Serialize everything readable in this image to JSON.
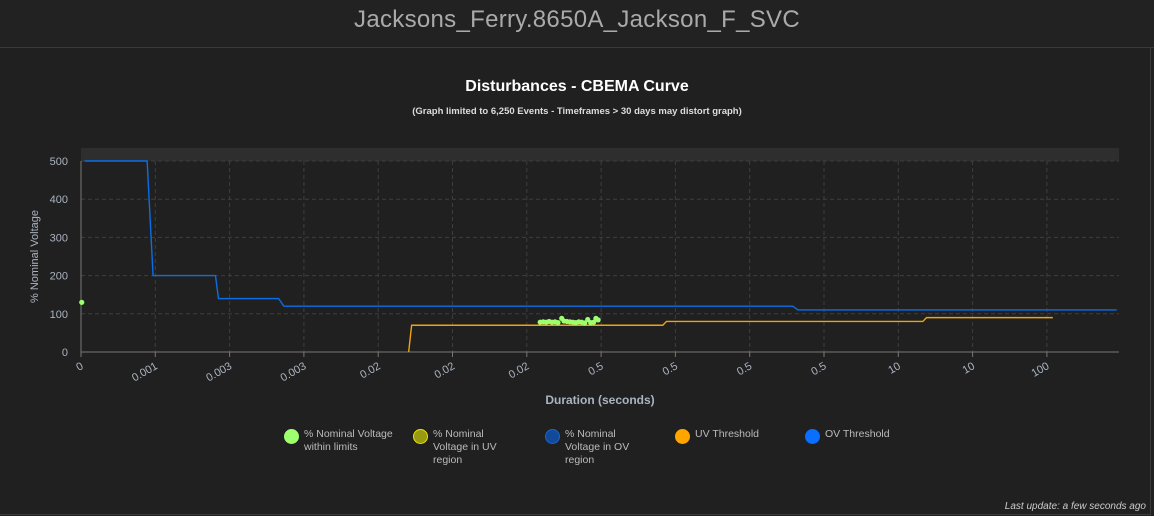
{
  "header": {
    "title": "Jacksons_Ferry.8650A_Jackson_F_SVC"
  },
  "footer": {
    "last_update": "Last update: a few seconds ago"
  },
  "chart_data": {
    "type": "line",
    "title": "Disturbances - CBEMA Curve",
    "subtitle": "(Graph limited to 6,250 Events - Timeframes > 30 days may distort graph)",
    "xlabel": "Duration (seconds)",
    "ylabel": "% Nominal Voltage",
    "x_tick_labels": [
      "0",
      "0.001",
      "0.003",
      "0.003",
      "0.02",
      "0.02",
      "0.02",
      "0.5",
      "0.5",
      "0.5",
      "0.5",
      "10",
      "10",
      "100"
    ],
    "x_axis_note": "x values given as tick-position index along the axis",
    "xlim": [
      0,
      14
    ],
    "ylim": [
      0,
      500
    ],
    "y_ticks": [
      0,
      100,
      200,
      300,
      400,
      500
    ],
    "grid": true,
    "legend_placement": "bottom",
    "series": [
      {
        "name": "OV Threshold",
        "kind": "line",
        "color": "#0a6ee6",
        "points": [
          [
            0.05,
            500
          ],
          [
            0.89,
            500
          ],
          [
            0.97,
            200
          ],
          [
            1.81,
            200
          ],
          [
            1.85,
            140
          ],
          [
            2.66,
            140
          ],
          [
            2.73,
            120
          ],
          [
            9.58,
            120
          ],
          [
            9.65,
            110
          ],
          [
            13.94,
            110
          ]
        ]
      },
      {
        "name": "UV Threshold",
        "kind": "line",
        "color": "#f0a30a",
        "points": [
          [
            4.41,
            0
          ],
          [
            4.45,
            70
          ],
          [
            7.83,
            70
          ],
          [
            7.88,
            80
          ],
          [
            11.33,
            80
          ],
          [
            11.38,
            90
          ],
          [
            13.08,
            90
          ]
        ]
      },
      {
        "name": "% Nominal Voltage within limits",
        "kind": "scatter",
        "color": "#9dff6e",
        "points": [
          [
            0.01,
            130
          ],
          [
            6.18,
            78
          ],
          [
            6.22,
            79
          ],
          [
            6.26,
            78
          ],
          [
            6.3,
            80
          ],
          [
            6.34,
            78
          ],
          [
            6.38,
            79
          ],
          [
            6.42,
            77
          ],
          [
            6.47,
            88
          ],
          [
            6.5,
            81
          ],
          [
            6.54,
            80
          ],
          [
            6.58,
            79
          ],
          [
            6.62,
            78
          ],
          [
            6.66,
            77
          ],
          [
            6.7,
            79
          ],
          [
            6.74,
            78
          ],
          [
            6.78,
            76
          ],
          [
            6.82,
            85
          ],
          [
            6.86,
            77
          ],
          [
            6.9,
            78
          ],
          [
            6.93,
            88
          ],
          [
            6.96,
            84
          ]
        ]
      },
      {
        "name": "% Nominal Voltage in UV region",
        "kind": "scatter",
        "color": "#9a9a12",
        "points": []
      },
      {
        "name": "% Nominal Voltage in OV region",
        "kind": "scatter",
        "color": "#114a9a",
        "points": []
      }
    ]
  },
  "legend": [
    {
      "label": "% Nominal Voltage within limits",
      "color": "#9dff6e",
      "border": "#9dff6e"
    },
    {
      "label": "% Nominal Voltage in UV region",
      "color": "#9a9a12",
      "border": "#e6e600"
    },
    {
      "label": "% Nominal Voltage in OV region",
      "color": "#114a9a",
      "border": "#1e64c8"
    },
    {
      "label": "UV Threshold",
      "color": "#ffa500",
      "border": "#ffa500"
    },
    {
      "label": "OV Threshold",
      "color": "#0a6eff",
      "border": "#0a6eff"
    }
  ]
}
